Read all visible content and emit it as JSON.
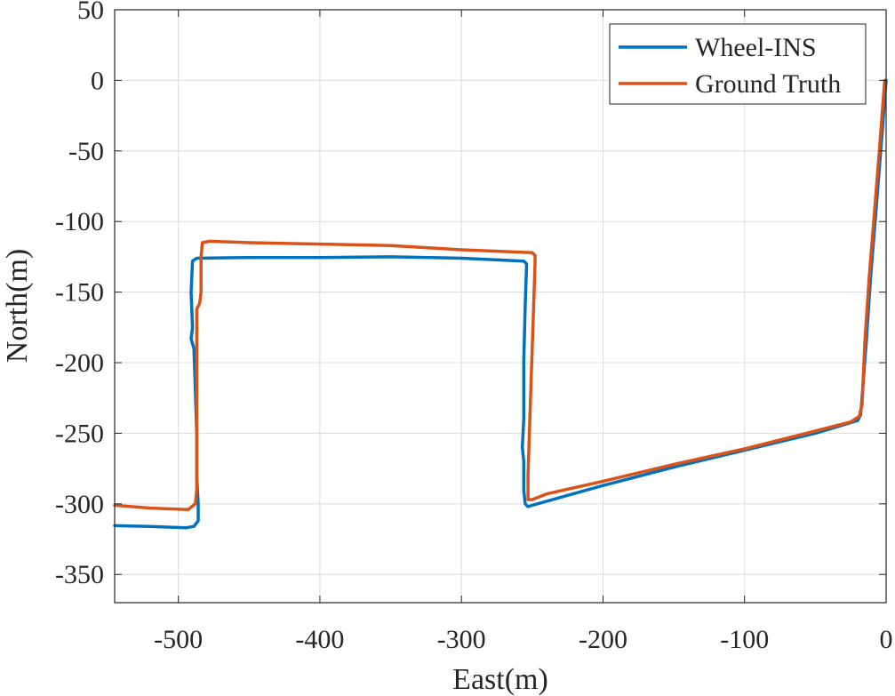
{
  "chart_data": {
    "type": "line",
    "title": "",
    "xlabel": "East(m)",
    "ylabel": "North(m)",
    "xlim": [
      -545,
      0
    ],
    "ylim": [
      -370,
      50
    ],
    "xticks": [
      -500,
      -400,
      -300,
      -200,
      -100,
      0
    ],
    "yticks": [
      50,
      0,
      -50,
      -100,
      -150,
      -200,
      -250,
      -300,
      -350
    ],
    "xtick_labels": [
      "-500",
      "-400",
      "-300",
      "-200",
      "-100",
      "0"
    ],
    "ytick_labels": [
      "50",
      "0",
      "-50",
      "-100",
      "-150",
      "-200",
      "-250",
      "-300",
      "-350"
    ],
    "grid": true,
    "legend_position": "top-right",
    "series": [
      {
        "name": "Wheel-INS",
        "color": "#0072BD",
        "points": [
          [
            0,
            0
          ],
          [
            -3,
            -40
          ],
          [
            -7,
            -90
          ],
          [
            -11,
            -140
          ],
          [
            -14,
            -185
          ],
          [
            -17,
            -225
          ],
          [
            -18,
            -237
          ],
          [
            -20,
            -241
          ],
          [
            -50,
            -250
          ],
          [
            -100,
            -262
          ],
          [
            -150,
            -274
          ],
          [
            -200,
            -287
          ],
          [
            -250,
            -301
          ],
          [
            -253,
            -302
          ],
          [
            -255,
            -300
          ],
          [
            -256,
            -290
          ],
          [
            -256,
            -270
          ],
          [
            -257,
            -260
          ],
          [
            -256,
            -240
          ],
          [
            -256,
            -200
          ],
          [
            -255,
            -160
          ],
          [
            -254,
            -130
          ],
          [
            -256,
            -128
          ],
          [
            -300,
            -126
          ],
          [
            -350,
            -125
          ],
          [
            -400,
            -125.5
          ],
          [
            -450,
            -125.5
          ],
          [
            -487,
            -126
          ],
          [
            -490,
            -128
          ],
          [
            -491,
            -150
          ],
          [
            -490,
            -175
          ],
          [
            -491,
            -183
          ],
          [
            -489,
            -190
          ],
          [
            -488,
            -220
          ],
          [
            -487,
            -250
          ],
          [
            -487,
            -280
          ],
          [
            -486,
            -300
          ],
          [
            -486,
            -312
          ],
          [
            -489,
            -316
          ],
          [
            -495,
            -317
          ],
          [
            -520,
            -316
          ],
          [
            -545,
            -315.5
          ]
        ]
      },
      {
        "name": "Ground Truth",
        "color": "#D95319",
        "points": [
          [
            -1,
            0
          ],
          [
            -4,
            -40
          ],
          [
            -8,
            -90
          ],
          [
            -12,
            -140
          ],
          [
            -15,
            -185
          ],
          [
            -17,
            -230
          ],
          [
            -19,
            -238
          ],
          [
            -25,
            -242
          ],
          [
            -60,
            -251
          ],
          [
            -100,
            -261
          ],
          [
            -150,
            -272
          ],
          [
            -200,
            -284
          ],
          [
            -240,
            -293
          ],
          [
            -250,
            -297
          ],
          [
            -253,
            -297
          ],
          [
            -253,
            -280
          ],
          [
            -252,
            -250
          ],
          [
            -251,
            -220
          ],
          [
            -250,
            -190
          ],
          [
            -249,
            -160
          ],
          [
            -248,
            -130
          ],
          [
            -248,
            -124
          ],
          [
            -250,
            -122
          ],
          [
            -300,
            -120
          ],
          [
            -350,
            -117
          ],
          [
            -400,
            -116
          ],
          [
            -450,
            -115
          ],
          [
            -478,
            -114
          ],
          [
            -483,
            -115
          ],
          [
            -484,
            -125
          ],
          [
            -484,
            -150
          ],
          [
            -485,
            -158
          ],
          [
            -487,
            -162
          ],
          [
            -487,
            -200
          ],
          [
            -487,
            -250
          ],
          [
            -487,
            -290
          ],
          [
            -488,
            -300
          ],
          [
            -493,
            -304
          ],
          [
            -520,
            -303
          ],
          [
            -545,
            -301
          ]
        ]
      }
    ]
  }
}
